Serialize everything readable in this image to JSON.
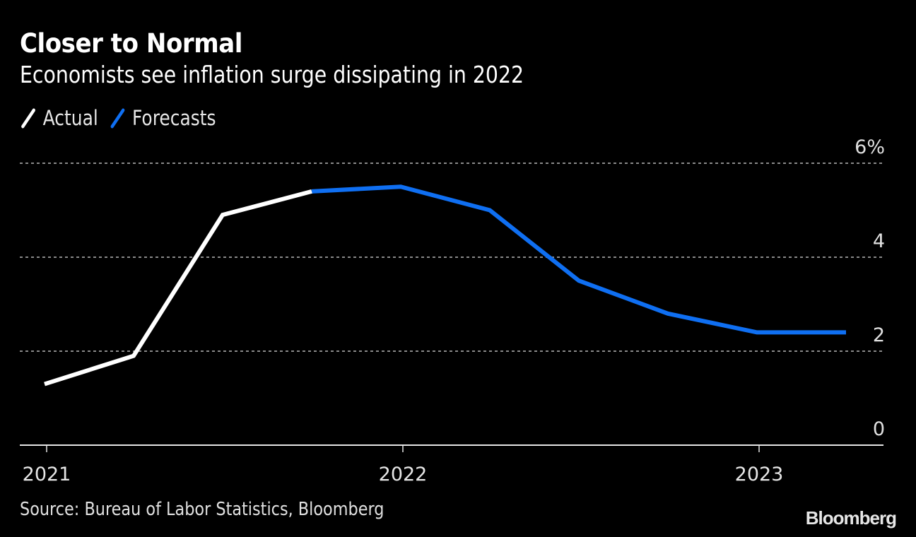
{
  "chart_data": {
    "type": "line",
    "title": "Closer to Normal",
    "subtitle": "Economists see inflation surge dissipating in 2022",
    "xlabel": "",
    "ylabel": "",
    "x": [
      "2021-Q1",
      "2021-Q2",
      "2021-Q3",
      "2021-Q4",
      "2022-Q1",
      "2022-Q2",
      "2022-Q3",
      "2022-Q4",
      "2023-Q1",
      "2023-Q2"
    ],
    "series": [
      {
        "name": "Actual",
        "color": "#ffffff",
        "x": [
          "2021-Q1",
          "2021-Q2",
          "2021-Q3",
          "2021-Q4"
        ],
        "values": [
          1.3,
          1.9,
          4.9,
          5.4
        ]
      },
      {
        "name": "Forecasts",
        "color": "#0f6ff2",
        "x": [
          "2021-Q4",
          "2022-Q1",
          "2022-Q2",
          "2022-Q3",
          "2022-Q4",
          "2023-Q1",
          "2023-Q2"
        ],
        "values": [
          5.4,
          5.5,
          5.0,
          3.5,
          2.8,
          2.4,
          2.4
        ]
      }
    ],
    "ylim": [
      0,
      6
    ],
    "yticks": [
      0,
      2,
      4,
      6
    ],
    "ytick_labels": [
      "0",
      "2",
      "4",
      "6%"
    ],
    "xticks": [
      "2021",
      "2022",
      "2023"
    ],
    "xtick_positions": [
      "2021-Q1",
      "2022-Q1",
      "2023-Q1"
    ],
    "grid": true,
    "legend_position": "top-left",
    "source": "Source: Bureau of Labor Statistics, Bloomberg",
    "brand": "Bloomberg"
  }
}
